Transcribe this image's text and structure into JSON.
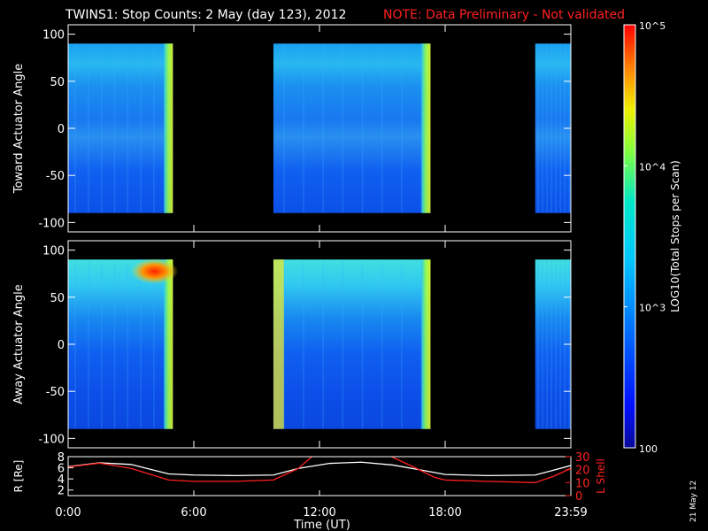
{
  "header": {
    "title": "TWINS1: Stop Counts:  2 May (day 123), 2012",
    "note": "NOTE: Data Preliminary - Not validated"
  },
  "colors": {
    "background": "#000000",
    "axis": "#ffffff",
    "note": "#ff2020",
    "l_shell": "#ff2020",
    "radius": "#ffffff"
  },
  "colorbar": {
    "label": "LOG10(Total Stops per Scan)",
    "ticks": [
      {
        "value": 100,
        "label": "100"
      },
      {
        "value": 1000,
        "label": "10^3"
      },
      {
        "value": 10000,
        "label": "10^4"
      },
      {
        "value": 100000,
        "label": "10^5"
      }
    ],
    "range": [
      100,
      100000
    ],
    "scale": "log",
    "colormap": "rainbow (blue-cyan-yellow-red)"
  },
  "x_axis": {
    "label": "Time (UT)",
    "range_hours": [
      0,
      24
    ],
    "ticks": [
      {
        "hour": 0,
        "label": "0:00"
      },
      {
        "hour": 6,
        "label": "6:00"
      },
      {
        "hour": 12,
        "label": "12:00"
      },
      {
        "hour": 18,
        "label": "18:00"
      },
      {
        "hour": 24,
        "label": "23:59"
      }
    ]
  },
  "footer": {
    "date_stamp": "21 May 12"
  },
  "chart_data": [
    {
      "type": "heatmap",
      "ylabel": "Toward Actuator Angle",
      "ylim": [
        -110,
        110
      ],
      "yticks": [
        -100,
        -50,
        0,
        50,
        100
      ],
      "data_y_range": [
        -90,
        90
      ],
      "coverage_hours": [
        [
          0.0,
          5.0
        ],
        [
          9.8,
          17.3
        ],
        [
          22.3,
          24.0
        ]
      ],
      "typical_level": "~300-1000 stops per scan",
      "features": [
        {
          "hours": [
            4.5,
            5.0
          ],
          "description": "bright bands near end of first interval"
        },
        {
          "hours": [
            16.4,
            17.3
          ],
          "description": "bright bands near end of second interval"
        }
      ]
    },
    {
      "type": "heatmap",
      "ylabel": "Away Actuator Angle",
      "ylim": [
        -110,
        110
      ],
      "yticks": [
        -100,
        -50,
        0,
        50,
        100
      ],
      "data_y_range": [
        -90,
        90
      ],
      "coverage_hours": [
        [
          0.0,
          5.0
        ],
        [
          9.8,
          17.3
        ],
        [
          22.3,
          24.0
        ]
      ],
      "typical_level": "~300-1000 stops per scan",
      "features": [
        {
          "hours": [
            2.5,
            5.0
          ],
          "angle": [
            70,
            85
          ],
          "description": "high counts (red) near top"
        },
        {
          "hours": [
            9.8,
            10.3
          ],
          "description": "bright yellow band at start of second interval"
        }
      ]
    },
    {
      "type": "line",
      "ylabel": "R [Re]",
      "ylabel_right": "L Shell",
      "ylim": [
        1,
        8
      ],
      "yticks": [
        2,
        4,
        6,
        8
      ],
      "ylim_right": [
        0,
        30
      ],
      "yticks_right": [
        0,
        10,
        20,
        30
      ],
      "series": [
        {
          "name": "R [Re]",
          "x": [
            0.0,
            1.5,
            3.0,
            4.8,
            6.0,
            8.0,
            9.8,
            11.0,
            12.5,
            14.0,
            15.5,
            17.0,
            18.0,
            20.0,
            22.3,
            23.2,
            24.0
          ],
          "values": [
            6.2,
            6.9,
            6.6,
            4.9,
            4.7,
            4.6,
            4.7,
            5.9,
            6.8,
            7.0,
            6.5,
            5.5,
            4.8,
            4.6,
            4.7,
            5.6,
            6.4
          ]
        },
        {
          "name": "L Shell",
          "x": [
            0.0,
            1.5,
            3.0,
            4.8,
            6.0,
            8.0,
            9.8,
            11.0,
            11.7,
            15.3,
            16.5,
            17.5,
            18.0,
            20.0,
            22.3,
            23.2,
            24.0
          ],
          "values": [
            22,
            25,
            21,
            12,
            11,
            11,
            12,
            21,
            31,
            31,
            22,
            14,
            12,
            11,
            10,
            15,
            21
          ]
        }
      ]
    }
  ]
}
